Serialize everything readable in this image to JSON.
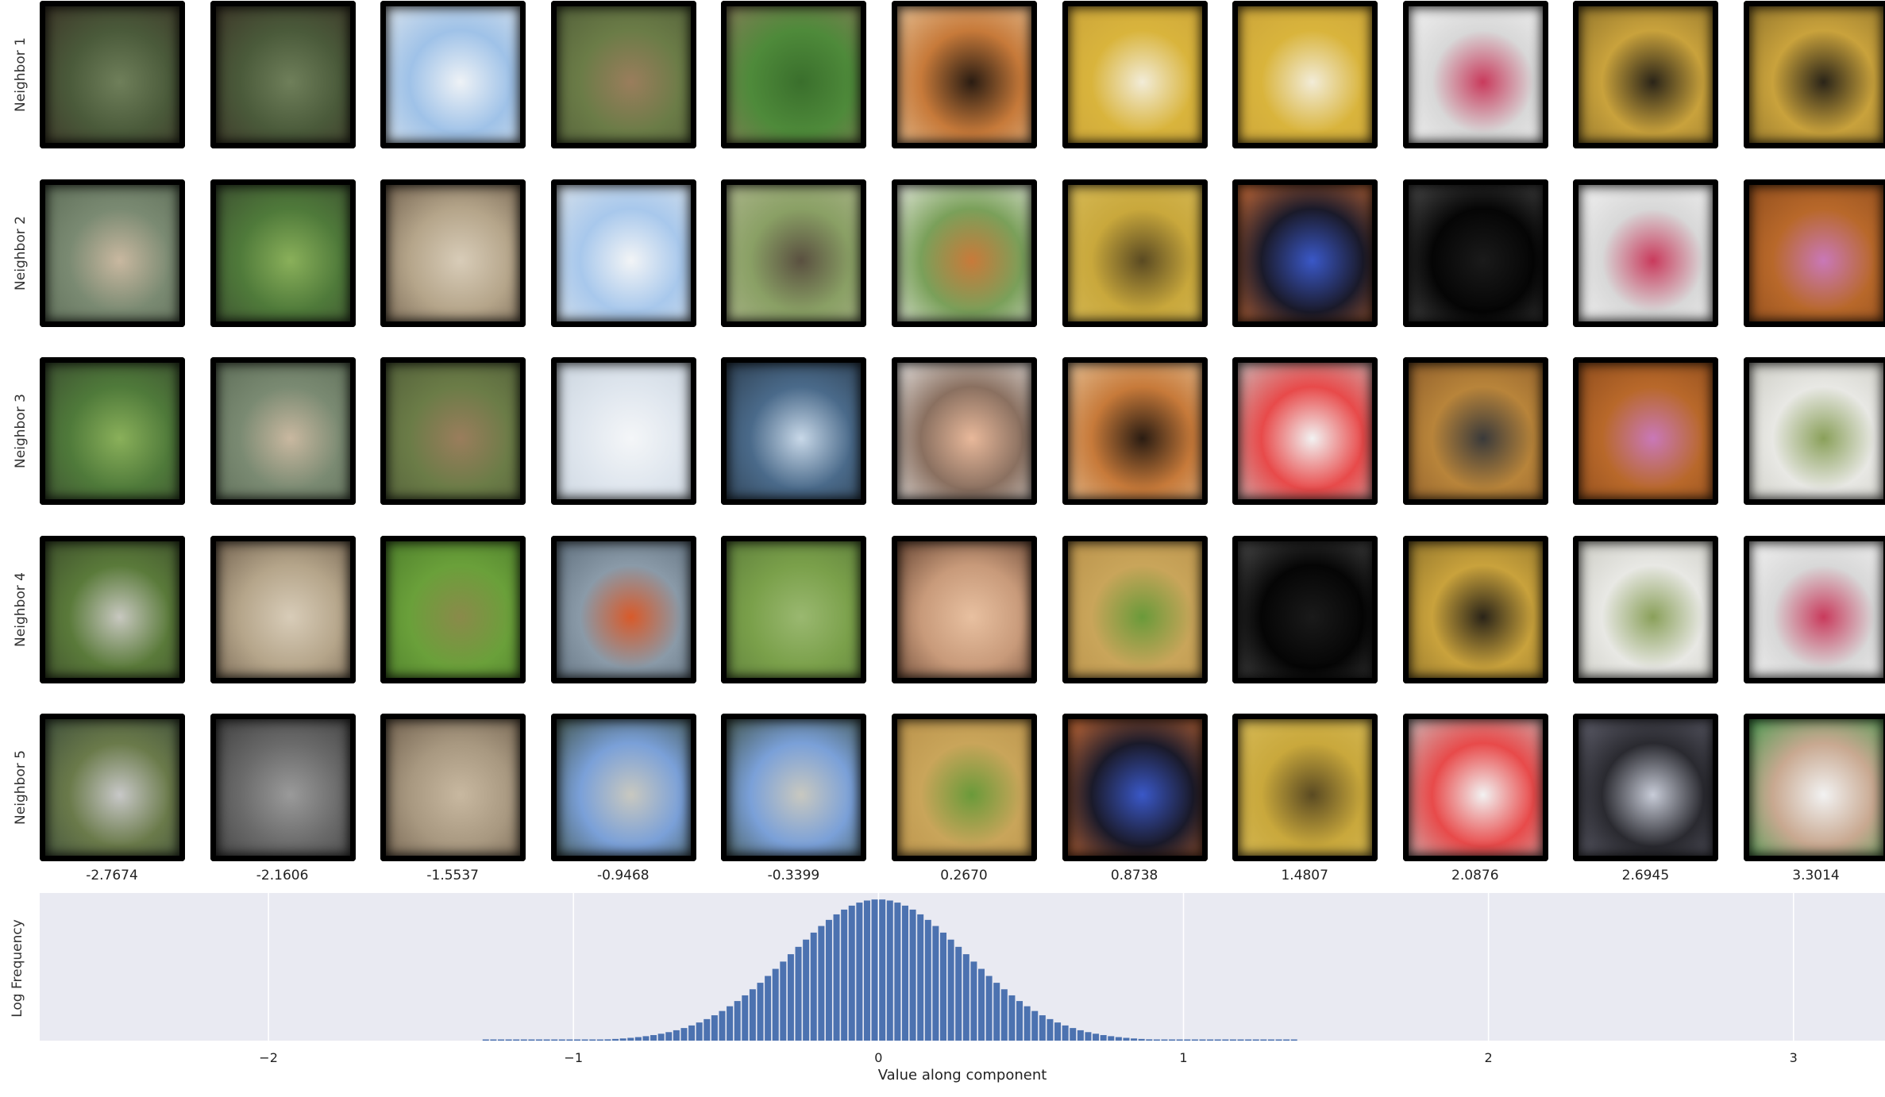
{
  "chart_data": {
    "type": "bar",
    "subtype": "histogram",
    "xlabel": "Value along component",
    "ylabel": "Log Frequency",
    "xlim": [
      -2.75,
      3.3
    ],
    "xticks": [
      -2,
      -1,
      0,
      1,
      2,
      3
    ],
    "xtick_labels": [
      "−2",
      "−1",
      "0",
      "1",
      "2",
      "3"
    ],
    "grid": true,
    "bar_color": "#4c72b0",
    "background": "#e9eaf2",
    "distribution": {
      "peak_x": 0.0,
      "sigma": 0.29,
      "bin_width": 0.025,
      "support": [
        -1.3,
        1.35
      ]
    }
  },
  "neighbor_grid": {
    "row_labels": [
      "Neighbor 1",
      "Neighbor 2",
      "Neighbor 3",
      "Neighbor 4",
      "Neighbor 5"
    ],
    "column_values": [
      "-2.7674",
      "-2.1606",
      "-1.5537",
      "-0.9468",
      "-0.3399",
      "0.2670",
      "0.8738",
      "1.4807",
      "2.0876",
      "2.6945",
      "3.3014"
    ],
    "tiles": [
      [
        {
          "icon": "bison-forest-image",
          "colors": [
            "#4a5a3a",
            "#6f7f5a",
            "#3b3226"
          ]
        },
        {
          "icon": "bison-forest-image",
          "colors": [
            "#4a5a3a",
            "#6f7f5a",
            "#3b3226"
          ]
        },
        {
          "icon": "airplane-snow-image",
          "colors": [
            "#9fc2e8",
            "#eef2f6",
            "#dfe6ec"
          ]
        },
        {
          "icon": "coyote-grass-image",
          "colors": [
            "#6b7c47",
            "#9a7d5c",
            "#4f5c38"
          ]
        },
        {
          "icon": "mallard-ducks-image",
          "colors": [
            "#4e8a3a",
            "#3a6f2c",
            "#8a7a5a"
          ]
        },
        {
          "icon": "tiger-image",
          "colors": [
            "#c77a3a",
            "#2a1c12",
            "#e8c8a0"
          ]
        },
        {
          "icon": "checkerboard-image",
          "colors": [
            "#d9b43c",
            "#f2ecd8",
            "#c9a23a"
          ]
        },
        {
          "icon": "checkerboard-image",
          "colors": [
            "#d9b43c",
            "#f2ecd8",
            "#c9a23a"
          ]
        },
        {
          "icon": "pink-tube-image",
          "colors": [
            "#d8d8d8",
            "#c93a5c",
            "#f5f5f5"
          ]
        },
        {
          "icon": "lens-cap-image",
          "colors": [
            "#c9a23c",
            "#2a2418",
            "#8a6f2a"
          ]
        },
        {
          "icon": "lens-cap-image",
          "colors": [
            "#c9a23c",
            "#2a2418",
            "#8a6f2a"
          ]
        }
      ],
      [
        {
          "icon": "lynx-forest-image",
          "colors": [
            "#7a8a72",
            "#c9b8a0",
            "#5a6a55"
          ]
        },
        {
          "icon": "forest-clearing-image",
          "colors": [
            "#4f7a3a",
            "#8ab05a",
            "#3a4a30"
          ]
        },
        {
          "icon": "lynx-closeup-image",
          "colors": [
            "#b5a58a",
            "#d8ccb8",
            "#6a5a48"
          ]
        },
        {
          "icon": "airplane-snow-image",
          "colors": [
            "#a8c8ec",
            "#f2f4f6",
            "#dde4ea"
          ]
        },
        {
          "icon": "shorebird-image",
          "colors": [
            "#8aa065",
            "#5a5040",
            "#b0b890"
          ]
        },
        {
          "icon": "finch-image",
          "colors": [
            "#7aa05a",
            "#c87a3a",
            "#f2f2ee"
          ]
        },
        {
          "icon": "ocarina-image",
          "colors": [
            "#c9a83c",
            "#5a4a22",
            "#d8bc5a"
          ]
        },
        {
          "icon": "blue-flame-image",
          "colors": [
            "#1a1a2a",
            "#3a58c8",
            "#e87a3a"
          ]
        },
        {
          "icon": "dark-glass-image",
          "colors": [
            "#050505",
            "#1a1a1a",
            "#555555"
          ]
        },
        {
          "icon": "pink-tube-image",
          "colors": [
            "#d8d8d8",
            "#c93a5c",
            "#f5f5f5"
          ]
        },
        {
          "icon": "purple-pen-image",
          "colors": [
            "#b8682a",
            "#c978b8",
            "#8a4a1c"
          ]
        }
      ],
      [
        {
          "icon": "forest-clearing-image",
          "colors": [
            "#4f7a3a",
            "#8ab05a",
            "#3a4a30"
          ]
        },
        {
          "icon": "lynx-forest-image",
          "colors": [
            "#7a8a72",
            "#c9b8a0",
            "#5a6a55"
          ]
        },
        {
          "icon": "coyote-grass-image",
          "colors": [
            "#6b7c47",
            "#9a7d5c",
            "#4f5c38"
          ]
        },
        {
          "icon": "cloudy-sky-image",
          "colors": [
            "#dfe6ee",
            "#f4f6f8",
            "#c8d2dc"
          ]
        },
        {
          "icon": "fireboat-image",
          "colors": [
            "#4a6a8a",
            "#c8d8e8",
            "#2a3a4a"
          ]
        },
        {
          "icon": "portrait-man-image",
          "colors": [
            "#8a7060",
            "#e8b89a",
            "#f2f2f2"
          ]
        },
        {
          "icon": "tiger-image",
          "colors": [
            "#c77a3a",
            "#2a1c12",
            "#e8c8a0"
          ]
        },
        {
          "icon": "measuring-cup-image",
          "colors": [
            "#e84a4a",
            "#f2f2f2",
            "#c8c8c8"
          ]
        },
        {
          "icon": "remote-control-image",
          "colors": [
            "#b8843a",
            "#3a3a3a",
            "#8a5a2a"
          ]
        },
        {
          "icon": "purple-pen-image",
          "colors": [
            "#b8682a",
            "#c978b8",
            "#8a4a1c"
          ]
        },
        {
          "icon": "green-ipod-image",
          "colors": [
            "#e8e8e4",
            "#8aa05a",
            "#c8c8c0"
          ]
        }
      ],
      [
        {
          "icon": "bamboo-rocks-image",
          "colors": [
            "#5a7a3a",
            "#c8c8c0",
            "#3a4a2a"
          ]
        },
        {
          "icon": "lynx-closeup-image",
          "colors": [
            "#b5a58a",
            "#d8ccb8",
            "#6a5a48"
          ]
        },
        {
          "icon": "hippo-grass-image",
          "colors": [
            "#6aa03a",
            "#8a8a4a",
            "#4a7a2a"
          ]
        },
        {
          "icon": "lifeboat-image",
          "colors": [
            "#8a9aa8",
            "#d85a2a",
            "#5a6a78"
          ]
        },
        {
          "icon": "field-image",
          "colors": [
            "#7aa04a",
            "#9ab870",
            "#5a7a3a"
          ]
        },
        {
          "icon": "hand-snake-image",
          "colors": [
            "#c89a7a",
            "#e8c0a0",
            "#5a3a2a"
          ]
        },
        {
          "icon": "lizard-wall-image",
          "colors": [
            "#c9a55a",
            "#6a9a3a",
            "#b8904a"
          ]
        },
        {
          "icon": "dark-glass-image",
          "colors": [
            "#050505",
            "#1a1a1a",
            "#555555"
          ]
        },
        {
          "icon": "lens-cap-image",
          "colors": [
            "#c9a23c",
            "#2a2418",
            "#8a6f2a"
          ]
        },
        {
          "icon": "green-ipod-image",
          "colors": [
            "#e8e8e4",
            "#8aa05a",
            "#c8c8c0"
          ]
        },
        {
          "icon": "pink-tube-image",
          "colors": [
            "#d8d8d8",
            "#c93a5c",
            "#f5f5f5"
          ]
        }
      ],
      [
        {
          "icon": "satellite-map-image",
          "colors": [
            "#6a7a4a",
            "#c8c8c8",
            "#3a4a3a"
          ]
        },
        {
          "icon": "elephant-image",
          "colors": [
            "#6a6a6a",
            "#9a9a9a",
            "#3a3a3a"
          ]
        },
        {
          "icon": "baboons-image",
          "colors": [
            "#a89880",
            "#c8b8a0",
            "#6a5a48"
          ]
        },
        {
          "icon": "monument-image",
          "colors": [
            "#7aa0d8",
            "#c8c8c0",
            "#3a4a3a"
          ]
        },
        {
          "icon": "monument-image",
          "colors": [
            "#7aa0d8",
            "#c8c8c0",
            "#3a4a3a"
          ]
        },
        {
          "icon": "lizard-wall-image",
          "colors": [
            "#c9a55a",
            "#6a9a3a",
            "#b8904a"
          ]
        },
        {
          "icon": "blue-flame-image",
          "colors": [
            "#1a1a2a",
            "#3a58c8",
            "#e87a3a"
          ]
        },
        {
          "icon": "ocarina-image",
          "colors": [
            "#c9a83c",
            "#5a4a22",
            "#d8bc5a"
          ]
        },
        {
          "icon": "measuring-cup-image",
          "colors": [
            "#e84a4a",
            "#f2f2f2",
            "#c8c8c8"
          ]
        },
        {
          "icon": "glowing-dome-image",
          "colors": [
            "#2a2a30",
            "#c8ccd8",
            "#6a6a78"
          ]
        },
        {
          "icon": "eye-closeup-image",
          "colors": [
            "#c8a890",
            "#f2f2f2",
            "#3a9a4a"
          ]
        }
      ]
    ]
  }
}
